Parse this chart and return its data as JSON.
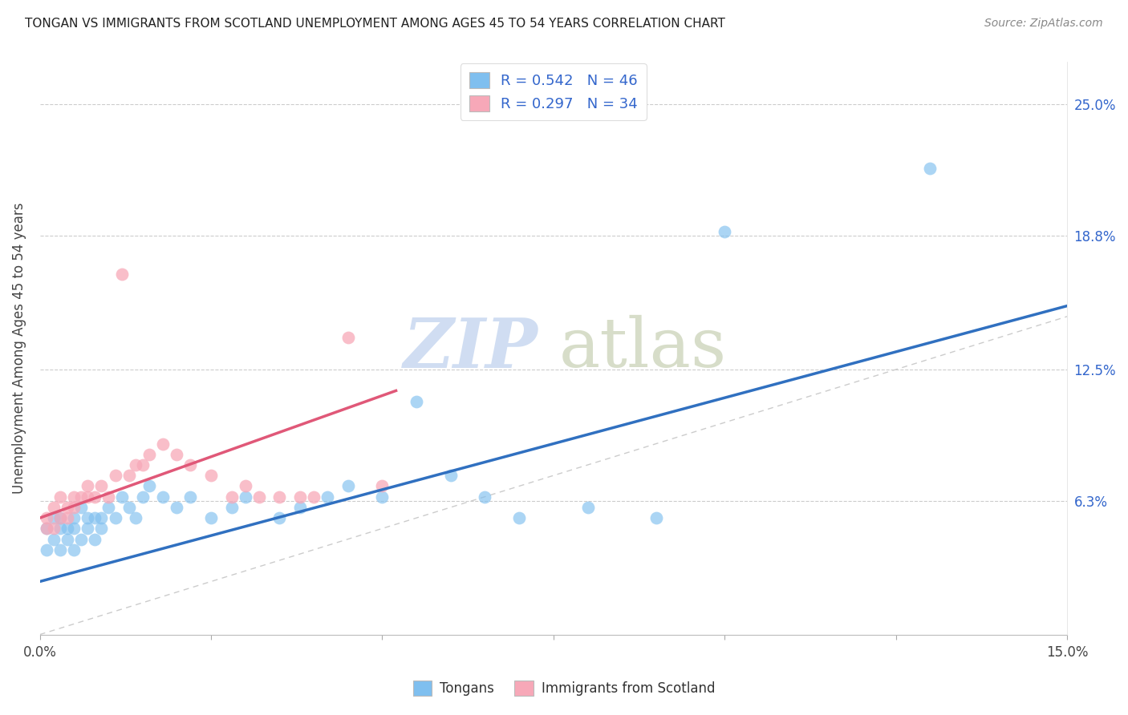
{
  "title": "TONGAN VS IMMIGRANTS FROM SCOTLAND UNEMPLOYMENT AMONG AGES 45 TO 54 YEARS CORRELATION CHART",
  "source": "Source: ZipAtlas.com",
  "ylabel": "Unemployment Among Ages 45 to 54 years",
  "xlim": [
    0.0,
    0.15
  ],
  "ylim": [
    0.0,
    0.27
  ],
  "ytick_vals": [
    0.063,
    0.125,
    0.188,
    0.25
  ],
  "ytick_labels": [
    "6.3%",
    "12.5%",
    "18.8%",
    "25.0%"
  ],
  "xtick_positions": [
    0.0,
    0.025,
    0.05,
    0.075,
    0.1,
    0.125,
    0.15
  ],
  "xtick_labels": [
    "0.0%",
    "",
    "",
    "",
    "",
    "",
    "15.0%"
  ],
  "grid_color": "#cccccc",
  "background_color": "#ffffff",
  "blue_color": "#7fbfef",
  "blue_line_color": "#3070c0",
  "pink_color": "#f7a8b8",
  "pink_line_color": "#e05878",
  "diagonal_color": "#cccccc",
  "watermark_zip_color": "#c8d8f0",
  "watermark_atlas_color": "#d0d8c0",
  "legend_blue_label": "R = 0.542   N = 46",
  "legend_pink_label": "R = 0.297   N = 34",
  "legend_bottom_blue": "Tongans",
  "legend_bottom_pink": "Immigrants from Scotland",
  "blue_line_x0": 0.0,
  "blue_line_x1": 0.15,
  "blue_line_y0": 0.025,
  "blue_line_y1": 0.155,
  "pink_line_x0": 0.0,
  "pink_line_x1": 0.052,
  "pink_line_y0": 0.055,
  "pink_line_y1": 0.115,
  "tongan_x": [
    0.001,
    0.001,
    0.002,
    0.002,
    0.003,
    0.003,
    0.003,
    0.004,
    0.004,
    0.005,
    0.005,
    0.005,
    0.006,
    0.006,
    0.007,
    0.007,
    0.008,
    0.008,
    0.009,
    0.009,
    0.01,
    0.011,
    0.012,
    0.013,
    0.014,
    0.015,
    0.016,
    0.018,
    0.02,
    0.022,
    0.025,
    0.028,
    0.03,
    0.035,
    0.038,
    0.042,
    0.045,
    0.05,
    0.055,
    0.06,
    0.065,
    0.07,
    0.08,
    0.09,
    0.1,
    0.13
  ],
  "tongan_y": [
    0.05,
    0.04,
    0.045,
    0.055,
    0.04,
    0.05,
    0.055,
    0.045,
    0.05,
    0.04,
    0.05,
    0.055,
    0.045,
    0.06,
    0.05,
    0.055,
    0.045,
    0.055,
    0.05,
    0.055,
    0.06,
    0.055,
    0.065,
    0.06,
    0.055,
    0.065,
    0.07,
    0.065,
    0.06,
    0.065,
    0.055,
    0.06,
    0.065,
    0.055,
    0.06,
    0.065,
    0.07,
    0.065,
    0.11,
    0.075,
    0.065,
    0.055,
    0.06,
    0.055,
    0.19,
    0.22
  ],
  "scotland_x": [
    0.001,
    0.001,
    0.002,
    0.002,
    0.003,
    0.003,
    0.004,
    0.004,
    0.005,
    0.005,
    0.006,
    0.007,
    0.007,
    0.008,
    0.009,
    0.01,
    0.011,
    0.012,
    0.013,
    0.014,
    0.015,
    0.016,
    0.018,
    0.02,
    0.022,
    0.025,
    0.028,
    0.03,
    0.032,
    0.035,
    0.038,
    0.04,
    0.045,
    0.05
  ],
  "scotland_y": [
    0.05,
    0.055,
    0.06,
    0.05,
    0.055,
    0.065,
    0.06,
    0.055,
    0.065,
    0.06,
    0.065,
    0.07,
    0.065,
    0.065,
    0.07,
    0.065,
    0.075,
    0.17,
    0.075,
    0.08,
    0.08,
    0.085,
    0.09,
    0.085,
    0.08,
    0.075,
    0.065,
    0.07,
    0.065,
    0.065,
    0.065,
    0.065,
    0.14,
    0.07
  ]
}
